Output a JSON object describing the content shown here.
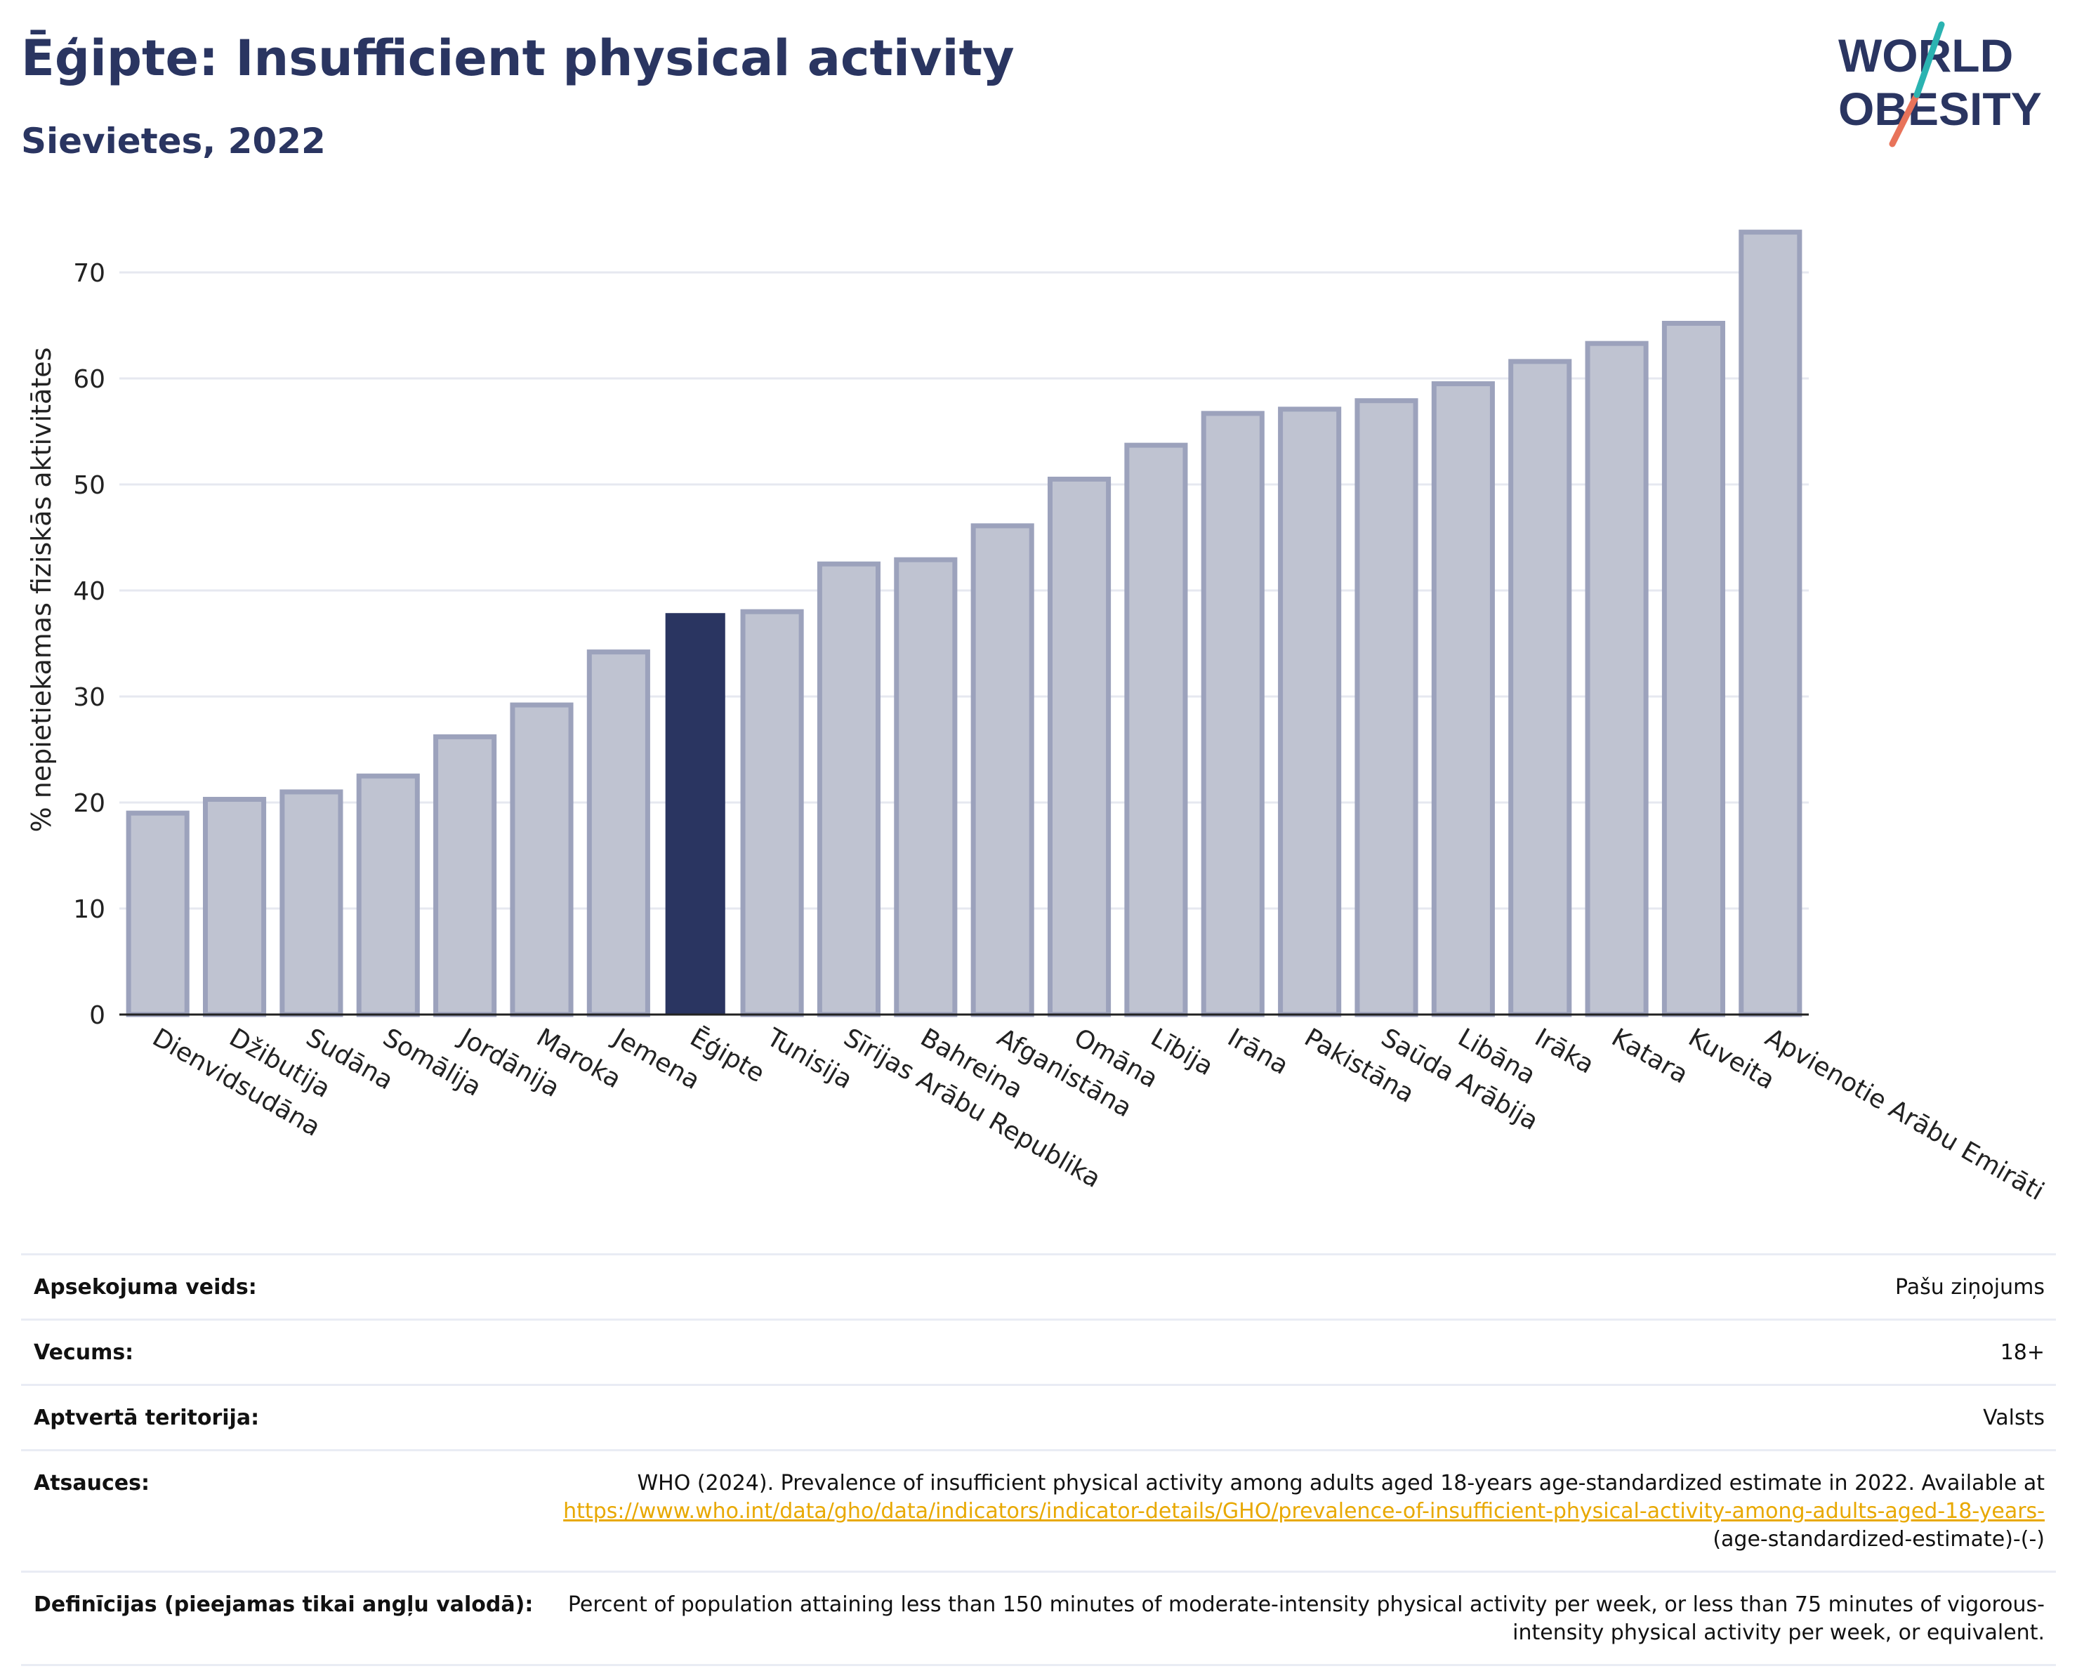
{
  "header": {
    "title": "Ēģipte: Insufficient physical activity",
    "subtitle": "Sievietes, 2022"
  },
  "logo": {
    "line1": "WORLD",
    "line2": "OBESITY"
  },
  "colors": {
    "highlight": "#2a3561",
    "bar": "#bfc3d1",
    "bar_border": "#9ca2bc",
    "grid": "#e6e8f0",
    "link": "#e8a800"
  },
  "chart_data": {
    "type": "bar",
    "ylabel": "% nepietiekamas fiziskās aktivitātes",
    "ylim": [
      0,
      76
    ],
    "yticks": [
      0,
      10,
      20,
      30,
      40,
      50,
      60,
      70
    ],
    "grid": true,
    "highlight": "Ēģipte",
    "categories": [
      "Dienvidsudāna",
      "Džibutija",
      "Sudāna",
      "Somālija",
      "Jordānija",
      "Maroka",
      "Jemena",
      "Ēģipte",
      "Tunisija",
      "Sīrijas Arābu Republika",
      "Bahreina",
      "Afganistāna",
      "Omāna",
      "Lībija",
      "Irāna",
      "Pakistāna",
      "Saūda Arābija",
      "Libāna",
      "Irāka",
      "Katara",
      "Kuveita",
      "Apvienotie Arābu Emirāti"
    ],
    "values": [
      19.0,
      20.3,
      21.0,
      22.5,
      26.2,
      29.2,
      34.2,
      37.8,
      38.0,
      42.5,
      42.9,
      46.1,
      50.5,
      53.7,
      56.7,
      57.1,
      57.9,
      59.5,
      61.6,
      63.3,
      65.2,
      73.8
    ]
  },
  "info": {
    "rows": [
      {
        "key": "Apsekojuma veids:",
        "value": "Pašu ziņojums"
      },
      {
        "key": "Vecums:",
        "value": "18+"
      },
      {
        "key": "Aptvertā teritorija:",
        "value": "Valsts"
      }
    ],
    "sources": {
      "key": "Atsauces:",
      "text": "WHO (2024). Prevalence of insufficient physical activity among adults aged 18-years age-standardized estimate in 2022. Available at",
      "link": "https://www.who.int/data/gho/data/indicators/indicator-details/GHO/prevalence-of-insufficient-physical-activity-among-adults-aged-18-years-",
      "suffix": "(age-standardized-estimate)-(-)"
    },
    "definitions": {
      "key": "Definīcijas (pieejamas tikai angļu valodā):",
      "value": "Percent of population attaining less than 150 minutes of moderate-intensity physical activity per week, or less than 75 minutes of vigorous-intensity physical activity per week, or equivalent."
    }
  }
}
